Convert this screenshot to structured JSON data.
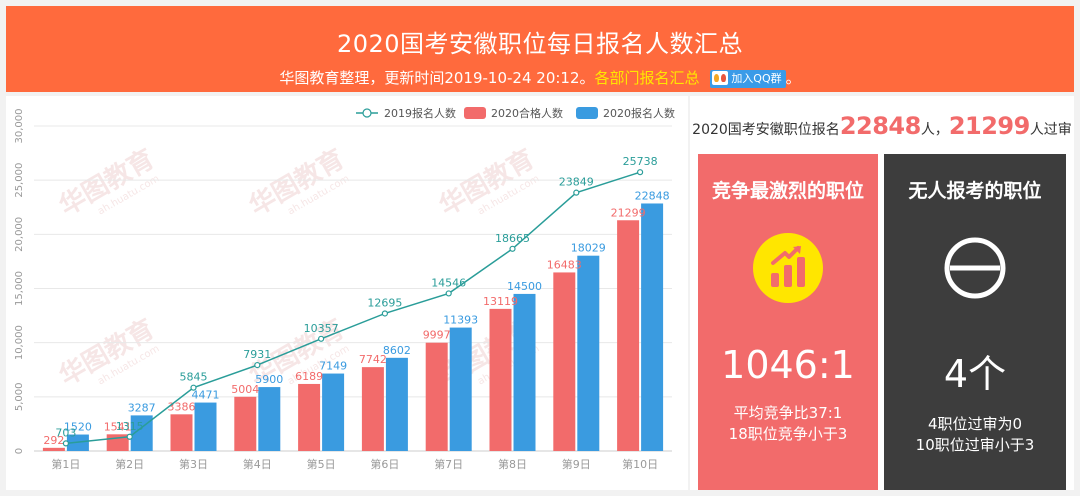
{
  "header": {
    "title": "2020国考安徽职位每日报名人数汇总",
    "subtitle_prefix": "华图教育整理，更新时间2019-10-24 20:12。",
    "subtitle_link": "各部门报名汇总",
    "qq_button": "加入QQ群",
    "subtitle_suffix": "。"
  },
  "summary": {
    "prefix": "2020国考安徽职位报名",
    "applicants": "22848",
    "mid": "人，",
    "approved": "21299",
    "suffix": "人过审"
  },
  "cards": [
    {
      "title": "竞争最激烈的职位",
      "icon": "bar-chart-growth-icon",
      "value": "1046:1",
      "note1": "平均竞争比37:1",
      "note2": "18职位竞争小于3",
      "color": "#f26b6b"
    },
    {
      "title": "无人报考的职位",
      "icon": "empty-set-icon",
      "value": "4个",
      "note1": "4职位过审为0",
      "note2": "10职位过审小于3",
      "color": "#3d3d3d"
    }
  ],
  "watermark": {
    "brand": "华图教育",
    "url": "ah.huatu.com"
  },
  "chart_data": {
    "type": "bar",
    "categories": [
      "第1日",
      "第2日",
      "第3日",
      "第4日",
      "第5日",
      "第6日",
      "第7日",
      "第8日",
      "第9日",
      "第10日"
    ],
    "series": [
      {
        "name": "2019报名人数",
        "kind": "line",
        "color": "#2a9d99",
        "values": [
          703,
          1315,
          5845,
          7931,
          10357,
          12695,
          14546,
          18665,
          23849,
          25738
        ]
      },
      {
        "name": "2020合格人数",
        "kind": "bar",
        "color": "#f26b6b",
        "values": [
          292,
          1541,
          3386,
          5004,
          6189,
          7742,
          9997,
          13119,
          16483,
          21299
        ]
      },
      {
        "name": "2020报名人数",
        "kind": "bar",
        "color": "#3a9be0",
        "values": [
          1520,
          3287,
          4471,
          5900,
          7149,
          8602,
          11393,
          14500,
          18029,
          22848
        ]
      }
    ],
    "yticks": [
      "0",
      "5,000",
      "10,000",
      "15,000",
      "20,000",
      "25,000",
      "30,000"
    ],
    "ylim": [
      0,
      30000
    ],
    "legend_position": "top-right",
    "grid": true
  }
}
